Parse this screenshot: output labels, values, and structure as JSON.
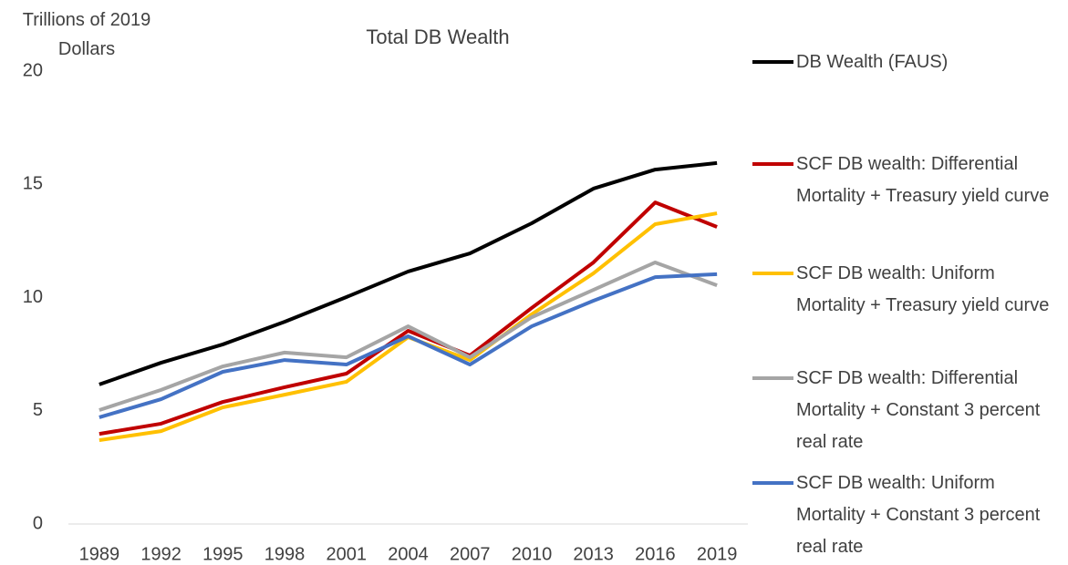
{
  "chart_data": {
    "type": "line",
    "title": "Total DB Wealth",
    "y_axis_label": "Trillions of 2019 Dollars",
    "categories": [
      "1989",
      "1992",
      "1995",
      "1998",
      "2001",
      "2004",
      "2007",
      "2010",
      "2013",
      "2016",
      "2019"
    ],
    "ylim": [
      0,
      20
    ],
    "yticks": [
      0,
      5,
      10,
      15,
      20
    ],
    "grid": false,
    "series": [
      {
        "name": "DB Wealth (FAUS)",
        "color": "#000000",
        "values": [
          6.16,
          7.12,
          7.93,
          8.93,
          10.02,
          11.15,
          11.95,
          13.28,
          14.81,
          15.65,
          15.94
        ]
      },
      {
        "name": "SCF DB wealth: Differential Mortality + Treasury yield curve",
        "color": "#c00000",
        "values": [
          3.98,
          4.43,
          5.39,
          6.04,
          6.64,
          8.53,
          7.44,
          9.54,
          11.55,
          14.2,
          13.12
        ]
      },
      {
        "name": "SCF DB wealth:  Uniform Mortality + Treasury yield curve",
        "color": "#ffc000",
        "values": [
          3.7,
          4.1,
          5.15,
          5.71,
          6.28,
          8.25,
          7.24,
          9.26,
          11.07,
          13.24,
          13.72
        ]
      },
      {
        "name": "SCF DB wealth:  Differential Mortality + Constant 3 percent real rate",
        "color": "#a5a5a5",
        "values": [
          5.03,
          5.92,
          6.96,
          7.57,
          7.36,
          8.73,
          7.36,
          9.13,
          10.34,
          11.55,
          10.54
        ]
      },
      {
        "name": "SCF DB wealth:  Uniform Mortality + Constant 3 percent real rate",
        "color": "#4472c4",
        "values": [
          4.71,
          5.51,
          6.72,
          7.24,
          7.04,
          8.29,
          7.04,
          8.73,
          9.86,
          10.9,
          11.03
        ]
      }
    ]
  }
}
